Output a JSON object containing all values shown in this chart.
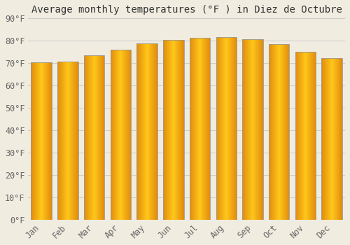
{
  "title": "Average monthly temperatures (°F ) in Diez de Octubre",
  "months": [
    "Jan",
    "Feb",
    "Mar",
    "Apr",
    "May",
    "Jun",
    "Jul",
    "Aug",
    "Sep",
    "Oct",
    "Nov",
    "Dec"
  ],
  "values": [
    70.5,
    70.7,
    73.6,
    76.1,
    78.8,
    80.4,
    81.3,
    81.5,
    80.8,
    78.4,
    75.2,
    72.1
  ],
  "bar_color_center": "#FFB300",
  "bar_color_edge": "#E08000",
  "bar_edge_color": "#999999",
  "background_color": "#f0ece0",
  "grid_color": "#cccccc",
  "title_fontsize": 10,
  "tick_fontsize": 8.5,
  "ylim": [
    0,
    90
  ],
  "yticks": [
    0,
    10,
    20,
    30,
    40,
    50,
    60,
    70,
    80,
    90
  ],
  "figwidth": 5.0,
  "figheight": 3.5,
  "dpi": 100
}
